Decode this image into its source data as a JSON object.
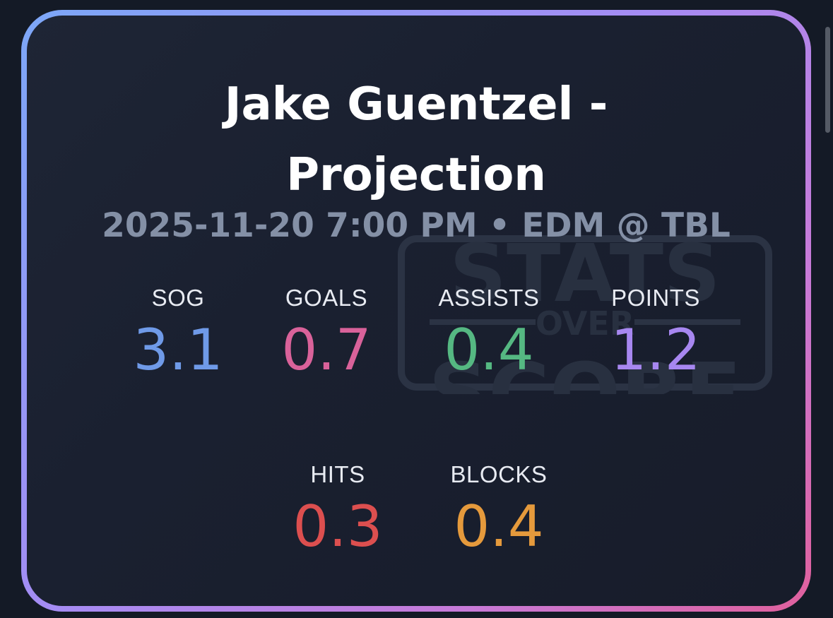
{
  "card": {
    "title_line1": "Jake Guentzel -",
    "title_line2": "Projection",
    "subtitle": "2025-11-20 7:00 PM • EDM @ TBL",
    "watermark": {
      "line1": "STATS",
      "line2": "OVER",
      "line3": "SCORE"
    }
  },
  "stats": [
    {
      "label": "SOG",
      "value": "3.1",
      "color": "#6f9ae8"
    },
    {
      "label": "GOALS",
      "value": "0.7",
      "color": "#d9629a"
    },
    {
      "label": "ASSISTS",
      "value": "0.4",
      "color": "#55b882"
    },
    {
      "label": "POINTS",
      "value": "1.2",
      "color": "#a787f0"
    },
    {
      "label": "HITS",
      "value": "0.3",
      "color": "#dc4f4f"
    },
    {
      "label": "BLOCKS",
      "value": "0.4",
      "color": "#e59a3c"
    }
  ]
}
